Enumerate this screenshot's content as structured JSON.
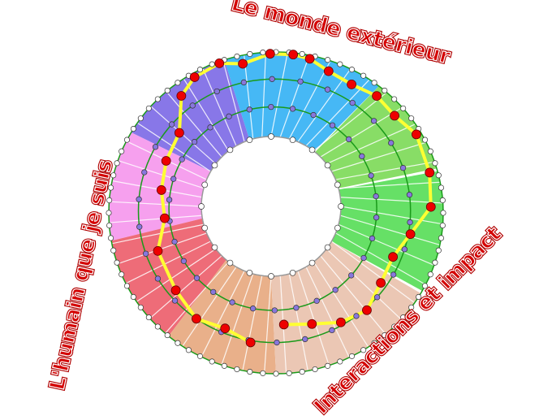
{
  "labels": {
    "outer_world": "Le monde extérieur",
    "self": "L'humain que je suis",
    "interactions": "Interactions et impact"
  },
  "colors": {
    "label_text": "#d40000",
    "ring_lines": "#1a9a1a",
    "path": "#ffff33",
    "key_node": "#ee0000",
    "inner_node": "#8877dd",
    "edge_node": "#ffffff",
    "sectors": [
      "#46b8f5",
      "#8877e8",
      "#f6a0ee",
      "#ee6c78",
      "#e9b08a",
      "#ebc7b4",
      "#66e066",
      "#88dd66"
    ]
  }
}
